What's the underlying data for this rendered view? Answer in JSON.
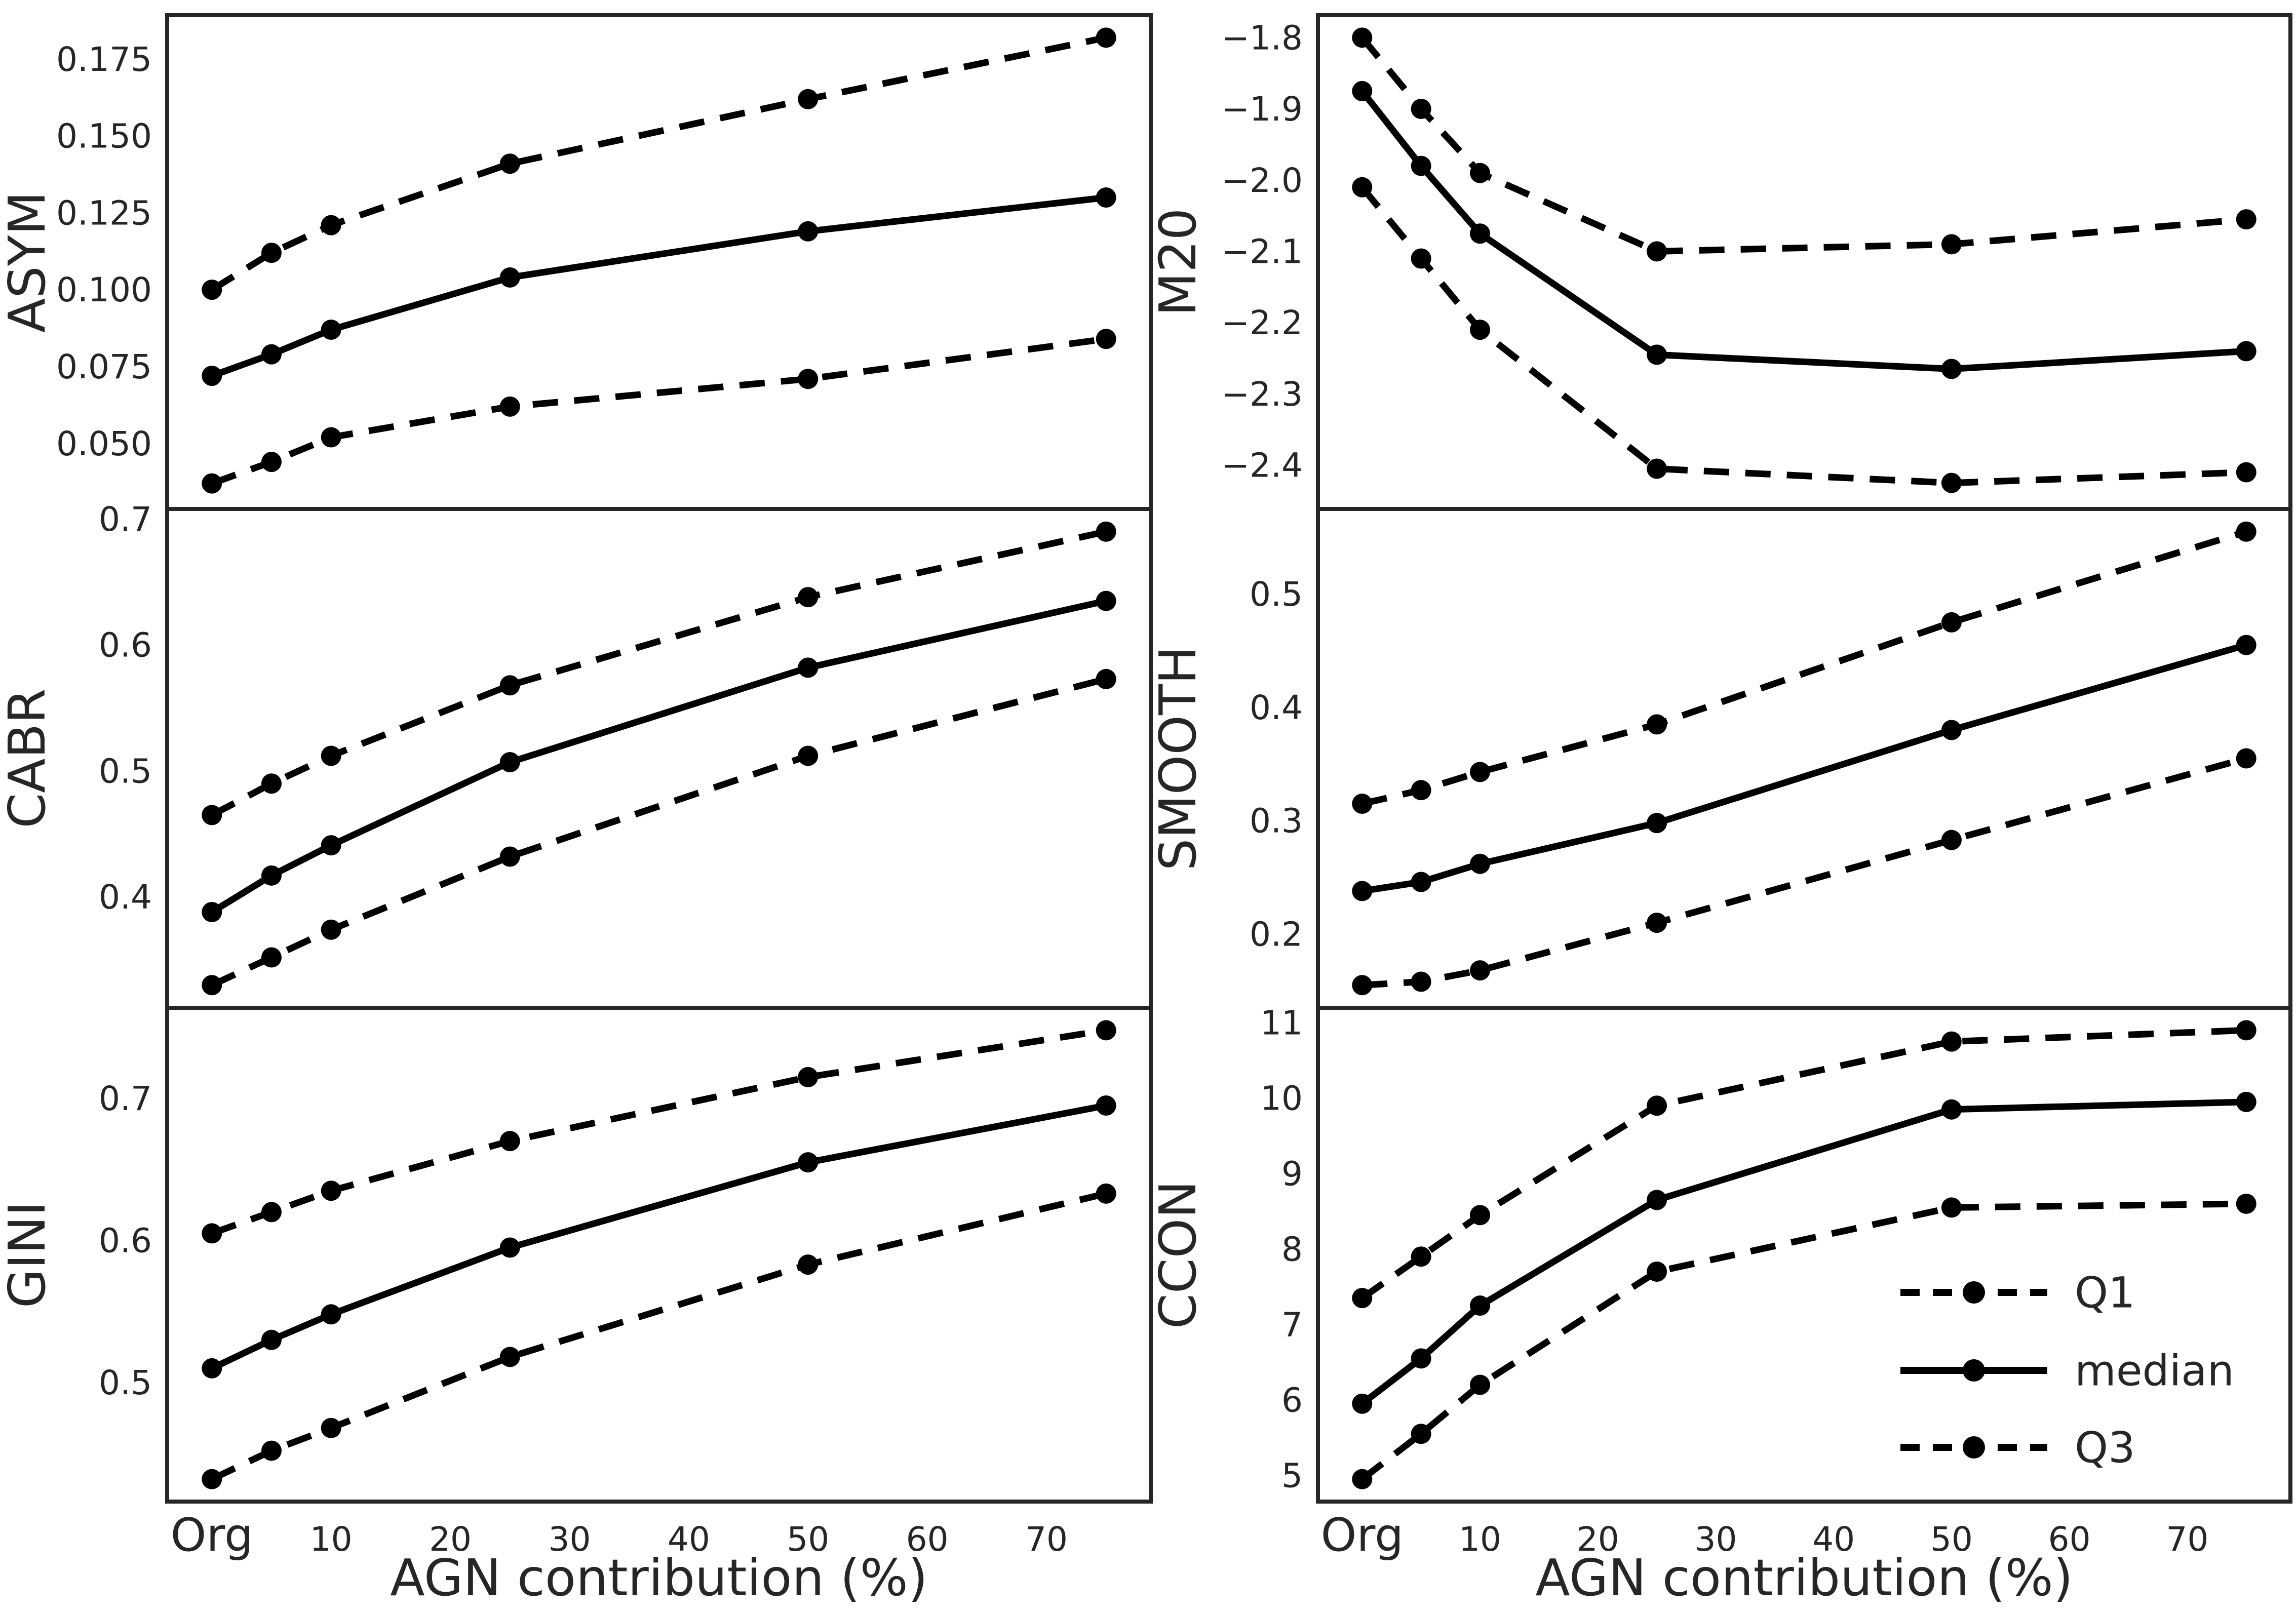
{
  "figure": {
    "xlabel": "AGN contribution (%)",
    "x_tick_labels": [
      "Org",
      "10",
      "20",
      "30",
      "40",
      "50",
      "60",
      "70"
    ],
    "x_tick_values": [
      0,
      10,
      20,
      30,
      40,
      50,
      60,
      70
    ],
    "xlim": [
      -3.75,
      78.75
    ],
    "x_values": [
      0,
      5,
      10,
      25,
      50,
      75
    ],
    "x_value_labels": [
      "Org",
      "5",
      "10",
      "25",
      "50",
      "75"
    ],
    "colors": {
      "line": "#000000",
      "marker": "#000000",
      "text": "#262626",
      "spine": "#262626",
      "background": "#ffffff"
    },
    "legend": {
      "position": "lower right of CCON panel",
      "entries": [
        {
          "label": "Q1",
          "style": "dashed"
        },
        {
          "label": "median",
          "style": "solid"
        },
        {
          "label": "Q3",
          "style": "dashed"
        }
      ]
    }
  },
  "chart_data": [
    {
      "type": "line",
      "panel": "ASYM",
      "row": 0,
      "col": 0,
      "ylabel": "ASYM",
      "ylim": [
        0.0287,
        0.1893
      ],
      "yticks": [
        0.05,
        0.075,
        0.1,
        0.125,
        0.15,
        0.175
      ],
      "ytick_labels": [
        "0.050",
        "0.075",
        "0.100",
        "0.125",
        "0.150",
        "0.175"
      ],
      "x": [
        0,
        5,
        10,
        25,
        50,
        75
      ],
      "series": [
        {
          "name": "Q1",
          "style": "dashed",
          "values": [
            0.037,
            0.044,
            0.052,
            0.062,
            0.071,
            0.084
          ]
        },
        {
          "name": "median",
          "style": "solid",
          "values": [
            0.072,
            0.079,
            0.087,
            0.104,
            0.119,
            0.13
          ]
        },
        {
          "name": "Q3",
          "style": "dashed",
          "values": [
            0.1,
            0.112,
            0.121,
            0.141,
            0.162,
            0.182
          ]
        }
      ],
      "show_legend": false
    },
    {
      "type": "line",
      "panel": "M20",
      "row": 0,
      "col": 1,
      "ylabel": "M20",
      "ylim": [
        -2.4615,
        -1.7685
      ],
      "yticks": [
        -2.4,
        -2.3,
        -2.2,
        -2.1,
        -2.0,
        -1.9,
        -1.8
      ],
      "ytick_labels": [
        "−2.4",
        "−2.3",
        "−2.2",
        "−2.1",
        "−2.0",
        "−1.9",
        "−1.8"
      ],
      "x": [
        0,
        5,
        10,
        25,
        50,
        75
      ],
      "series": [
        {
          "name": "Q1",
          "style": "dashed",
          "values": [
            -2.01,
            -2.11,
            -2.21,
            -2.405,
            -2.425,
            -2.41
          ]
        },
        {
          "name": "median",
          "style": "solid",
          "values": [
            -1.875,
            -1.98,
            -2.075,
            -2.245,
            -2.265,
            -2.24
          ]
        },
        {
          "name": "Q3",
          "style": "dashed",
          "values": [
            -1.8,
            -1.9,
            -1.99,
            -2.1,
            -2.09,
            -2.055
          ]
        }
      ],
      "show_legend": false
    },
    {
      "type": "line",
      "panel": "CABR",
      "row": 1,
      "col": 0,
      "ylabel": "CABR",
      "ylim": [
        0.312,
        0.708
      ],
      "yticks": [
        0.4,
        0.5,
        0.6,
        0.7
      ],
      "ytick_labels": [
        "0.4",
        "0.5",
        "0.6",
        "0.7"
      ],
      "x": [
        0,
        5,
        10,
        25,
        50,
        75
      ],
      "series": [
        {
          "name": "Q1",
          "style": "dashed",
          "values": [
            0.33,
            0.352,
            0.374,
            0.432,
            0.512,
            0.573
          ]
        },
        {
          "name": "median",
          "style": "solid",
          "values": [
            0.388,
            0.417,
            0.441,
            0.507,
            0.582,
            0.635
          ]
        },
        {
          "name": "Q3",
          "style": "dashed",
          "values": [
            0.465,
            0.49,
            0.512,
            0.568,
            0.638,
            0.69
          ]
        }
      ],
      "show_legend": false
    },
    {
      "type": "line",
      "panel": "SMOOTH",
      "row": 1,
      "col": 1,
      "ylabel": "SMOOTH",
      "ylim": [
        0.135,
        0.575
      ],
      "yticks": [
        0.2,
        0.3,
        0.4,
        0.5
      ],
      "ytick_labels": [
        "0.2",
        "0.3",
        "0.4",
        "0.5"
      ],
      "x": [
        0,
        5,
        10,
        25,
        50,
        75
      ],
      "series": [
        {
          "name": "Q1",
          "style": "dashed",
          "values": [
            0.155,
            0.158,
            0.168,
            0.21,
            0.283,
            0.355
          ]
        },
        {
          "name": "median",
          "style": "solid",
          "values": [
            0.238,
            0.246,
            0.262,
            0.298,
            0.38,
            0.455
          ]
        },
        {
          "name": "Q3",
          "style": "dashed",
          "values": [
            0.315,
            0.327,
            0.343,
            0.385,
            0.475,
            0.555
          ]
        }
      ],
      "show_legend": false
    },
    {
      "type": "line",
      "panel": "GINI",
      "row": 2,
      "col": 0,
      "ylabel": "GINI",
      "ylim": [
        0.4162,
        0.7638
      ],
      "yticks": [
        0.5,
        0.6,
        0.7
      ],
      "ytick_labels": [
        "0.5",
        "0.6",
        "0.7"
      ],
      "x": [
        0,
        5,
        10,
        25,
        50,
        75
      ],
      "series": [
        {
          "name": "Q1",
          "style": "dashed",
          "values": [
            0.432,
            0.452,
            0.468,
            0.518,
            0.583,
            0.633
          ]
        },
        {
          "name": "median",
          "style": "solid",
          "values": [
            0.51,
            0.53,
            0.548,
            0.595,
            0.655,
            0.695
          ]
        },
        {
          "name": "Q3",
          "style": "dashed",
          "values": [
            0.605,
            0.62,
            0.635,
            0.67,
            0.715,
            0.748
          ]
        }
      ],
      "show_legend": false
    },
    {
      "type": "line",
      "panel": "CCON",
      "row": 2,
      "col": 1,
      "ylabel": "CCON",
      "ylim": [
        4.6525,
        11.1975
      ],
      "yticks": [
        5,
        6,
        7,
        8,
        9,
        10,
        11
      ],
      "ytick_labels": [
        "5",
        "6",
        "7",
        "8",
        "9",
        "10",
        "11"
      ],
      "x": [
        0,
        5,
        10,
        25,
        50,
        75
      ],
      "series": [
        {
          "name": "Q1",
          "style": "dashed",
          "values": [
            4.95,
            5.55,
            6.2,
            7.7,
            8.55,
            8.6
          ]
        },
        {
          "name": "median",
          "style": "solid",
          "values": [
            5.95,
            6.55,
            7.25,
            8.65,
            9.85,
            9.95
          ]
        },
        {
          "name": "Q3",
          "style": "dashed",
          "values": [
            7.35,
            7.9,
            8.45,
            9.9,
            10.75,
            10.9
          ]
        }
      ],
      "show_legend": true
    }
  ]
}
